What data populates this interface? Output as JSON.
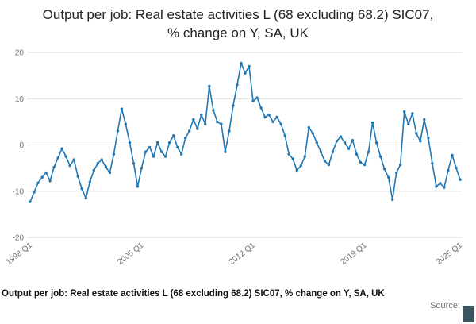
{
  "title": "Output per job: Real estate activities L (68 excluding 68.2) SIC07, % change on Y, SA, UK",
  "footer": {
    "caption": "Output per job: Real estate activities L (68 excluding 68.2) SIC07, % change on Y, SA, UK",
    "source_label": "Source:",
    "logo_color": "#3a5560"
  },
  "chart_data": {
    "type": "line",
    "title": "Output per job: Real estate activities L (68 excluding 68.2) SIC07, % change on Y, SA, UK",
    "xlabel": "",
    "ylabel": "",
    "ylim": [
      -20,
      20
    ],
    "yticks": [
      20,
      10,
      0,
      -10,
      -20
    ],
    "grid": true,
    "legend": false,
    "line_color": "#1f77b4",
    "grid_color": "#d9d9d9",
    "axis_text_color": "#6f6f6f",
    "x_start": "1998 Q1",
    "x_end": "2025 Q1",
    "frequency": "quarterly",
    "x_ticks": [
      {
        "label": "1998 Q1",
        "index": 0
      },
      {
        "label": "2005 Q1",
        "index": 28
      },
      {
        "label": "2012 Q1",
        "index": 56
      },
      {
        "label": "2019 Q1",
        "index": 84
      },
      {
        "label": "2025 Q1",
        "index": 108
      }
    ],
    "values": [
      -12.3,
      -10.2,
      -8.2,
      -7.0,
      -6.0,
      -7.8,
      -4.8,
      -2.8,
      -0.8,
      -2.5,
      -4.5,
      -3.2,
      -6.8,
      -9.5,
      -11.5,
      -8.0,
      -5.5,
      -4.0,
      -3.2,
      -4.8,
      -6.0,
      -2.0,
      3.0,
      7.8,
      4.5,
      0.5,
      -4.0,
      -9.0,
      -5.0,
      -1.5,
      -0.5,
      -2.5,
      0.5,
      -1.5,
      -2.5,
      0.5,
      2.0,
      -0.5,
      -2.0,
      1.5,
      3.0,
      5.5,
      3.5,
      6.5,
      4.5,
      12.7,
      7.5,
      5.0,
      4.5,
      -1.5,
      3.0,
      8.5,
      13.0,
      17.7,
      15.5,
      17.0,
      9.5,
      10.2,
      8.0,
      6.0,
      6.5,
      5.0,
      6.0,
      4.5,
      2.0,
      -2.0,
      -3.0,
      -5.5,
      -4.5,
      -2.5,
      3.8,
      2.5,
      0.5,
      -1.5,
      -3.5,
      -4.3,
      -1.5,
      0.8,
      1.8,
      0.5,
      -0.8,
      1.0,
      -2.0,
      -3.8,
      -4.3,
      -1.5,
      4.8,
      0.5,
      -2.5,
      -5.2,
      -7.0,
      -11.8,
      -6.0,
      -4.3,
      7.2,
      4.5,
      6.8,
      2.5,
      0.8,
      5.5,
      1.5,
      -4.0,
      -9.0,
      -8.3,
      -9.2,
      -5.5,
      -2.2,
      -5.0,
      -7.5
    ]
  }
}
